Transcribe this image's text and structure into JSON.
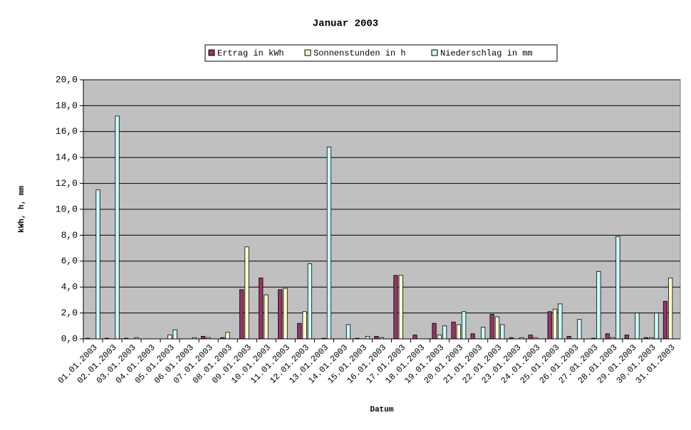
{
  "chart_data": {
    "type": "bar",
    "title": "Januar 2003",
    "x_label": "Datum",
    "y_label": "kWh, h, mm",
    "categories": [
      "01.01.2003",
      "02.01.2003",
      "03.01.2003",
      "04.01.2003",
      "05.01.2003",
      "06.01.2003",
      "07.01.2003",
      "08.01.2003",
      "09.01.2003",
      "10.01.2003",
      "11.01.2003",
      "12.01.2003",
      "13.01.2003",
      "14.01.2003",
      "15.01.2003",
      "16.01.2003",
      "17.01.2003",
      "18.01.2003",
      "19.01.2003",
      "20.01.2003",
      "21.01.2003",
      "22.01.2003",
      "23.01.2003",
      "24.01.2003",
      "25.01.2003",
      "26.01.2003",
      "27.01.2003",
      "28.01.2003",
      "29.01.2003",
      "30.01.2003",
      "31.01.2003"
    ],
    "series": [
      {
        "name": "Ertrag in kWh",
        "color": "#993366",
        "values": [
          0.05,
          0.05,
          0.05,
          0,
          0,
          0,
          0.2,
          0.1,
          3.8,
          4.7,
          3.8,
          1.2,
          0,
          0,
          0.05,
          0.2,
          4.9,
          0.3,
          1.2,
          1.3,
          0.4,
          1.9,
          0.1,
          0.3,
          2.1,
          0.2,
          0,
          0.4,
          0.3,
          0.1,
          2.9
        ]
      },
      {
        "name": "Sonnenstunden in h",
        "color": "#FFFFCC",
        "values": [
          0,
          0,
          0,
          0,
          0.3,
          0,
          0.1,
          0.5,
          7.1,
          3.4,
          3.9,
          2.1,
          0.05,
          0,
          0,
          0.1,
          4.9,
          0,
          0.3,
          1.1,
          0,
          1.7,
          0,
          0.1,
          2.3,
          0,
          0.05,
          0.1,
          0,
          0.1,
          4.7
        ]
      },
      {
        "name": "Niederschlag in mm",
        "color": "#CCFFFF",
        "values": [
          11.5,
          17.2,
          0.1,
          0,
          0.7,
          0.1,
          0,
          0,
          0,
          0,
          0,
          5.8,
          14.8,
          1.1,
          0.2,
          0,
          0,
          0,
          1.0,
          2.1,
          0.9,
          1.1,
          0.1,
          0,
          2.7,
          1.5,
          5.2,
          7.9,
          2.0,
          2.0,
          0
        ]
      }
    ],
    "ylim": [
      0,
      20
    ],
    "yticks": [
      {
        "value": 0,
        "label": "0,0"
      },
      {
        "value": 2,
        "label": "2,0"
      },
      {
        "value": 4,
        "label": "4,0"
      },
      {
        "value": 6,
        "label": "6,0"
      },
      {
        "value": 8,
        "label": "8,0"
      },
      {
        "value": 10,
        "label": "10,0"
      },
      {
        "value": 12,
        "label": "12,0"
      },
      {
        "value": 14,
        "label": "14,0"
      },
      {
        "value": 16,
        "label": "16,0"
      },
      {
        "value": 18,
        "label": "18,0"
      },
      {
        "value": 20,
        "label": "20,0"
      }
    ],
    "grid": true,
    "plot_background": "#C0C0C0",
    "legend_position": "top"
  }
}
